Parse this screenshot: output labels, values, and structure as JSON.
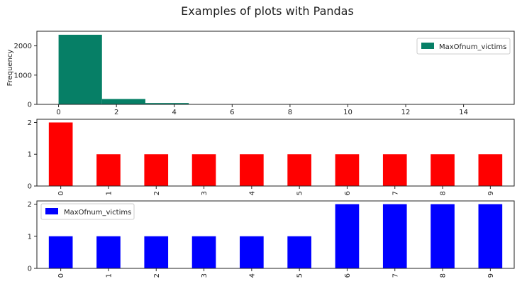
{
  "figure": {
    "title": "Examples of plots with Pandas"
  },
  "chart_data": [
    {
      "type": "bar",
      "subtype": "histogram",
      "color": "#067f66",
      "legend": {
        "label": "MaxOfnum_victims",
        "position": "upper-right"
      },
      "ylabel": "Frequency",
      "xlabel": "",
      "bins": [
        {
          "start": 0.0,
          "end": 1.5,
          "count": 2380
        },
        {
          "start": 1.5,
          "end": 3.0,
          "count": 185
        },
        {
          "start": 3.0,
          "end": 4.5,
          "count": 45
        },
        {
          "start": 4.5,
          "end": 6.0,
          "count": 8
        },
        {
          "start": 6.0,
          "end": 7.5,
          "count": 3
        },
        {
          "start": 7.5,
          "end": 9.0,
          "count": 2
        },
        {
          "start": 9.0,
          "end": 10.5,
          "count": 1
        },
        {
          "start": 10.5,
          "end": 12.0,
          "count": 1
        },
        {
          "start": 12.0,
          "end": 13.5,
          "count": 0
        },
        {
          "start": 13.5,
          "end": 15.0,
          "count": 1
        }
      ],
      "xlim": [
        -0.75,
        15.75
      ],
      "ylim": [
        0,
        2500
      ],
      "xticks": [
        0,
        2,
        4,
        6,
        8,
        10,
        12,
        14
      ],
      "yticks": [
        0,
        1000,
        2000
      ],
      "grid": false
    },
    {
      "type": "bar",
      "color": "#ff0000",
      "categories": [
        "0",
        "1",
        "2",
        "3",
        "4",
        "5",
        "6",
        "7",
        "8",
        "9"
      ],
      "values": [
        2,
        1,
        1,
        1,
        1,
        1,
        1,
        1,
        1,
        1
      ],
      "ylim": [
        0,
        2.1
      ],
      "yticks": [
        0,
        1,
        2
      ],
      "xlabel": "",
      "ylabel": "",
      "grid": false
    },
    {
      "type": "bar",
      "color": "#0000ff",
      "legend": {
        "label": "MaxOfnum_victims",
        "position": "upper-left"
      },
      "categories": [
        "0",
        "1",
        "2",
        "3",
        "4",
        "5",
        "6",
        "7",
        "8",
        "9"
      ],
      "values": [
        1,
        1,
        1,
        1,
        1,
        1,
        2,
        2,
        2,
        2
      ],
      "ylim": [
        0,
        2.1
      ],
      "yticks": [
        0,
        1,
        2
      ],
      "xlabel": "",
      "ylabel": "",
      "grid": false
    }
  ]
}
